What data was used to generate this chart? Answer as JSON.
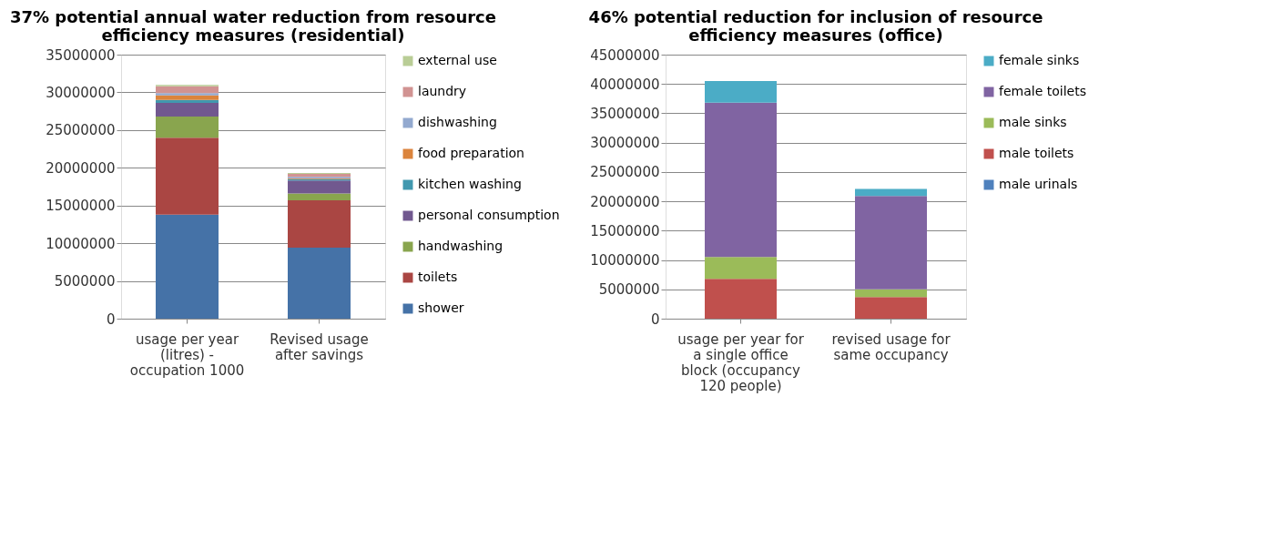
{
  "chart_data": [
    {
      "type": "bar",
      "stacked": true,
      "title": "37% potential annual water reduction from resource efficiency measures (residential)",
      "categories": [
        "usage per year (litres) - occupation 1000",
        "Revised usage after savings"
      ],
      "ylim": [
        0,
        35000000
      ],
      "yticks": [
        0,
        5000000,
        10000000,
        15000000,
        20000000,
        25000000,
        30000000,
        35000000
      ],
      "grid": "y",
      "legend": "right",
      "series": [
        {
          "name": "shower",
          "color": "#4572a7",
          "values": [
            13800000,
            9400000
          ]
        },
        {
          "name": "toilets",
          "color": "#aa4643",
          "values": [
            10200000,
            6300000
          ]
        },
        {
          "name": "handwashing",
          "color": "#89a54e",
          "values": [
            2800000,
            900000
          ]
        },
        {
          "name": "personal consumption",
          "color": "#71588f",
          "values": [
            1800000,
            1700000
          ]
        },
        {
          "name": "kitchen washing",
          "color": "#4198af",
          "values": [
            400000,
            200000
          ]
        },
        {
          "name": "food preparation",
          "color": "#db843d",
          "values": [
            600000,
            100000
          ]
        },
        {
          "name": "dishwashing",
          "color": "#93a9cf",
          "values": [
            300000,
            200000
          ]
        },
        {
          "name": "laundry",
          "color": "#d19392",
          "values": [
            900000,
            400000
          ]
        },
        {
          "name": "external use",
          "color": "#b9cd96",
          "values": [
            200000,
            100000
          ]
        }
      ]
    },
    {
      "type": "bar",
      "stacked": true,
      "title": "46% potential reduction for inclusion of resource efficiency measures (office)",
      "categories": [
        "usage per year for a single office block (occupancy 120 people)",
        "revised usage for same occupancy"
      ],
      "ylim": [
        0,
        45000000
      ],
      "yticks": [
        0,
        5000000,
        10000000,
        15000000,
        20000000,
        25000000,
        30000000,
        35000000,
        40000000,
        45000000
      ],
      "grid": "y",
      "legend": "right",
      "series": [
        {
          "name": "male urinals",
          "color": "#4f81bd",
          "values": [
            0,
            0
          ]
        },
        {
          "name": "male toilets",
          "color": "#c0504d",
          "values": [
            6800000,
            3700000
          ]
        },
        {
          "name": "male sinks",
          "color": "#9bbb59",
          "values": [
            3700000,
            1300000
          ]
        },
        {
          "name": "female toilets",
          "color": "#8064a2",
          "values": [
            26300000,
            15900000
          ]
        },
        {
          "name": "female sinks",
          "color": "#4bacc6",
          "values": [
            3700000,
            1200000
          ]
        }
      ]
    }
  ]
}
